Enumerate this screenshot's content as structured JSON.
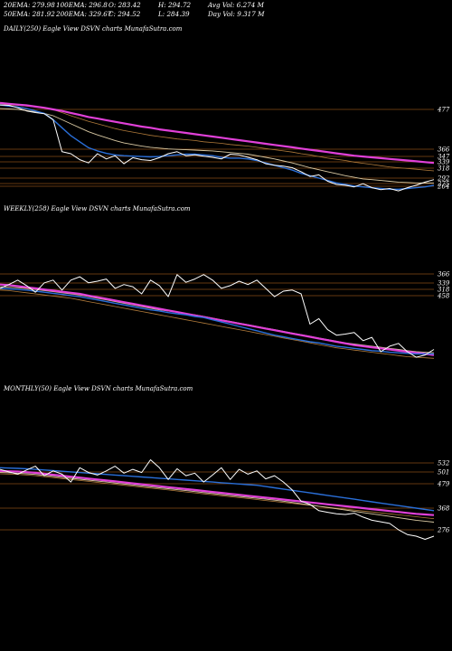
{
  "header": {
    "row1": [
      "20EMA: 279.98",
      "100EMA: 296.8",
      "O: 283.42",
      "H: 294.72",
      "Avg Vol: 6.274  M"
    ],
    "row2": [
      "50EMA: 281.92",
      "200EMA: 329.67",
      "C: 294.52",
      "L: 284.39",
      "Day Vol: 9.317 M"
    ]
  },
  "colors": {
    "background": "#000000",
    "price": "#ffffff",
    "ema_fast": "#2a6fd9",
    "ema_slow": "#e040d8",
    "ema_mid1": "#d9c9a3",
    "ema_mid2": "#b07a3a",
    "level_line": "#c8701e"
  },
  "chart_data": [
    {
      "type": "line",
      "title": "DAILY(250) Eagle  View  DSVN  charts MunafaSutra.com",
      "level_labels": [
        "477",
        "366",
        "347",
        "339",
        "318",
        "292",
        "275",
        "264"
      ],
      "series": [
        {
          "role": "price",
          "values": [
            477,
            476,
            470,
            462,
            458,
            455,
            440,
            360,
            355,
            340,
            332,
            355,
            342,
            350,
            330,
            345,
            340,
            338,
            345,
            355,
            360,
            350,
            352,
            349,
            346,
            342,
            354,
            352,
            346,
            340,
            330,
            326,
            324,
            320,
            310,
            298,
            302,
            286,
            278,
            276,
            272,
            280,
            270,
            265,
            268,
            262,
            270,
            276,
            284,
            290
          ]
        },
        {
          "role": "ema_fast",
          "values": [
            477,
            474,
            472,
            468,
            462,
            456,
            440,
            420,
            400,
            385,
            370,
            362,
            356,
            352,
            350,
            349,
            348,
            347,
            348,
            350,
            352,
            354,
            354,
            352,
            350,
            346,
            344,
            344,
            342,
            338,
            332,
            326,
            320,
            314,
            306,
            300,
            294,
            288,
            282,
            278,
            274,
            272,
            270,
            268,
            266,
            266,
            268,
            270,
            272,
            276
          ]
        },
        {
          "role": "ema_mid1",
          "values": [
            468,
            467,
            466,
            463,
            460,
            456,
            450,
            440,
            430,
            420,
            410,
            402,
            395,
            388,
            382,
            378,
            374,
            371,
            369,
            367,
            366,
            365,
            364,
            363,
            362,
            360,
            358,
            356,
            354,
            350,
            346,
            342,
            337,
            332,
            326,
            320,
            315,
            310,
            305,
            300,
            296,
            292,
            290,
            288,
            286,
            284,
            283,
            282,
            282,
            282
          ]
        },
        {
          "role": "ema_mid2",
          "values": [
            478,
            477,
            476,
            474,
            472,
            469,
            465,
            458,
            450,
            443,
            436,
            430,
            424,
            418,
            413,
            409,
            405,
            401,
            398,
            395,
            392,
            390,
            388,
            385,
            383,
            381,
            378,
            376,
            374,
            371,
            368,
            365,
            362,
            359,
            355,
            352,
            348,
            344,
            341,
            338,
            334,
            331,
            328,
            325,
            322,
            320,
            318,
            316,
            314,
            312
          ]
        },
        {
          "role": "ema_slow",
          "values": [
            482,
            480,
            478,
            476,
            473,
            470,
            466,
            462,
            457,
            452,
            447,
            443,
            439,
            435,
            431,
            427,
            423,
            420,
            416,
            413,
            410,
            407,
            404,
            401,
            398,
            395,
            392,
            389,
            386,
            383,
            380,
            377,
            374,
            371,
            368,
            365,
            362,
            359,
            356,
            353,
            350,
            348,
            346,
            344,
            342,
            340,
            338,
            336,
            334,
            332
          ]
        }
      ]
    },
    {
      "type": "line",
      "title": "WEEKLY(258) Eagle  View  DSVN  charts MunafaSutra.com",
      "level_labels": [
        "366",
        "339",
        "318",
        "458"
      ],
      "series": [
        {
          "role": "price",
          "values": [
            455,
            462,
            470,
            460,
            448,
            465,
            470,
            452,
            470,
            476,
            465,
            468,
            472,
            455,
            462,
            458,
            445,
            470,
            460,
            440,
            480,
            466,
            472,
            480,
            470,
            455,
            460,
            468,
            462,
            470,
            455,
            440,
            450,
            452,
            445,
            390,
            400,
            380,
            370,
            372,
            375,
            360,
            366,
            340,
            350,
            355,
            340,
            330,
            334,
            344
          ]
        },
        {
          "role": "ema_fast",
          "values": [
            455,
            454,
            453,
            452,
            450,
            448,
            446,
            444,
            442,
            440,
            437,
            434,
            431,
            428,
            425,
            422,
            419,
            416,
            414,
            411,
            409,
            407,
            404,
            402,
            398,
            394,
            390,
            386,
            382,
            378,
            374,
            370,
            367,
            364,
            361,
            358,
            356,
            353,
            350,
            348,
            346,
            344,
            342,
            341,
            339,
            338,
            337,
            336,
            336,
            336
          ]
        },
        {
          "role": "ema_mid1",
          "values": [
            458,
            457,
            456,
            455,
            453,
            451,
            449,
            447,
            445,
            443,
            440,
            437,
            434,
            431,
            428,
            425,
            422,
            419,
            416,
            414,
            412,
            409,
            407,
            404,
            401,
            398,
            395,
            392,
            389,
            386,
            383,
            380,
            377,
            374,
            371,
            368,
            365,
            362,
            359,
            356,
            354,
            352,
            350,
            348,
            346,
            344,
            342,
            340,
            339,
            338
          ]
        },
        {
          "role": "ema_mid2",
          "values": [
            452,
            451,
            449,
            447,
            445,
            443,
            441,
            439,
            437,
            434,
            431,
            428,
            425,
            422,
            419,
            416,
            413,
            410,
            407,
            404,
            401,
            398,
            395,
            392,
            389,
            386,
            383,
            380,
            377,
            374,
            371,
            368,
            365,
            362,
            359,
            356,
            353,
            350,
            347,
            345,
            343,
            341,
            339,
            337,
            335,
            333,
            331,
            330,
            329,
            328
          ]
        },
        {
          "role": "ema_slow",
          "values": [
            462,
            461,
            459,
            457,
            455,
            453,
            451,
            449,
            447,
            445,
            442,
            439,
            436,
            433,
            430,
            427,
            424,
            421,
            418,
            415,
            412,
            409,
            406,
            403,
            400,
            397,
            394,
            391,
            388,
            385,
            382,
            379,
            376,
            373,
            370,
            367,
            364,
            361,
            358,
            355,
            352,
            350,
            348,
            346,
            344,
            342,
            340,
            338,
            336,
            334
          ]
        }
      ]
    },
    {
      "type": "line",
      "title": "MONTHLY(50) Eagle  View  DSVN  charts MunafaSutra.com",
      "level_labels": [
        "532",
        "501",
        "479",
        "368",
        "276"
      ],
      "series": [
        {
          "role": "price",
          "values": [
            510,
            502,
            495,
            508,
            520,
            490,
            505,
            495,
            470,
            515,
            500,
            492,
            505,
            520,
            498,
            510,
            500,
            540,
            515,
            478,
            512,
            490,
            498,
            470,
            492,
            515,
            478,
            510,
            495,
            505,
            480,
            490,
            470,
            445,
            410,
            400,
            380,
            375,
            370,
            368,
            372,
            360,
            350,
            345,
            340,
            320,
            305,
            300,
            290,
            300
          ]
        },
        {
          "role": "ema_fast",
          "values": [
            515,
            514,
            513,
            512,
            510,
            508,
            506,
            504,
            502,
            500,
            498,
            496,
            494,
            492,
            490,
            488,
            486,
            484,
            482,
            480,
            478,
            476,
            474,
            472,
            470,
            468,
            466,
            464,
            462,
            460,
            456,
            452,
            448,
            444,
            440,
            436,
            432,
            428,
            424,
            420,
            416,
            412,
            408,
            404,
            400,
            396,
            392,
            388,
            384,
            380
          ]
        },
        {
          "role": "ema_mid1",
          "values": [
            500,
            499,
            498,
            496,
            494,
            491,
            488,
            485,
            482,
            479,
            476,
            473,
            470,
            467,
            464,
            461,
            458,
            455,
            452,
            449,
            446,
            443,
            440,
            437,
            434,
            431,
            428,
            425,
            422,
            419,
            416,
            413,
            410,
            406,
            402,
            398,
            394,
            390,
            386,
            382,
            378,
            374,
            370,
            366,
            362,
            358,
            354,
            350,
            347,
            344
          ]
        },
        {
          "role": "ema_mid2",
          "values": [
            496,
            495,
            494,
            492,
            490,
            487,
            484,
            481,
            478,
            475,
            472,
            469,
            466,
            463,
            460,
            457,
            454,
            451,
            448,
            445,
            442,
            439,
            436,
            433,
            430,
            427,
            424,
            421,
            418,
            415,
            412,
            409,
            406,
            403,
            400,
            397,
            394,
            391,
            388,
            385,
            382,
            379,
            376,
            373,
            370,
            367,
            364,
            361,
            358,
            355
          ]
        },
        {
          "role": "ema_slow",
          "values": [
            505,
            504,
            503,
            501,
            499,
            496,
            493,
            490,
            487,
            484,
            481,
            478,
            475,
            472,
            469,
            466,
            463,
            460,
            457,
            454,
            451,
            448,
            445,
            442,
            439,
            436,
            433,
            430,
            427,
            424,
            421,
            418,
            415,
            412,
            409,
            406,
            403,
            400,
            397,
            394,
            391,
            388,
            385,
            382,
            379,
            376,
            373,
            370,
            368,
            366
          ]
        }
      ]
    }
  ]
}
